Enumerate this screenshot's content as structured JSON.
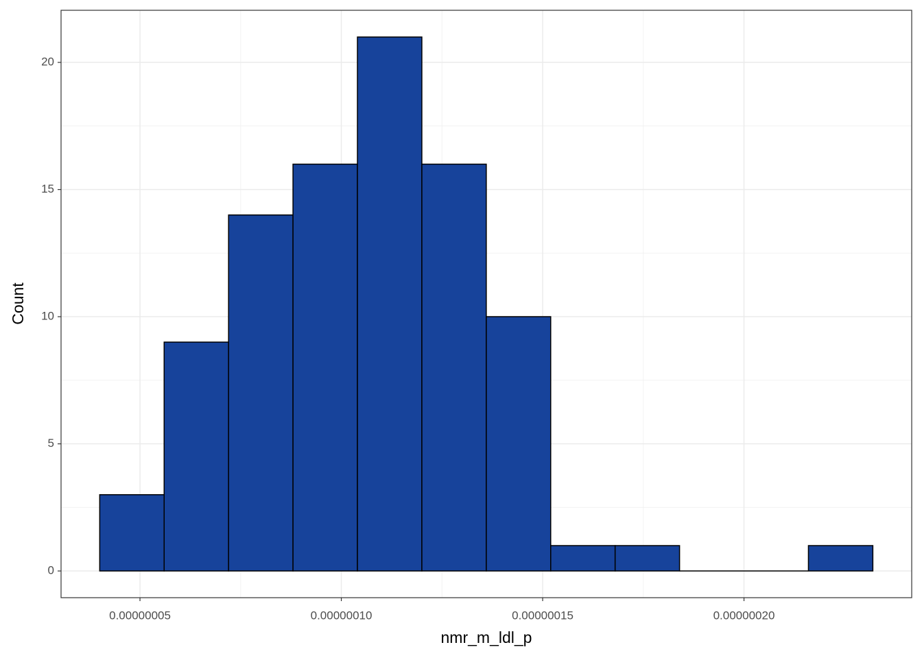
{
  "chart_data": {
    "type": "histogram",
    "x_label": "nmr_m_ldl_p",
    "y_label": "Count",
    "bins": [
      4e-08,
      5.6e-08,
      7.2e-08,
      8.8e-08,
      1.04e-07,
      1.2e-07,
      1.36e-07,
      1.52e-07,
      1.68e-07,
      1.84e-07,
      2e-07,
      2.16e-07,
      2.32e-07
    ],
    "values": [
      3,
      9,
      14,
      16,
      21,
      16,
      10,
      1,
      1,
      0,
      0,
      1
    ],
    "color": "#17439b",
    "edge_color": "#000000",
    "xlim": [
      3.04e-08,
      2.4165e-07
    ],
    "ylim": [
      -1.05,
      22.05
    ],
    "xticks": [
      {
        "value": 5e-08,
        "label": "0.00000005"
      },
      {
        "value": 1e-07,
        "label": "0.00000010"
      },
      {
        "value": 1.5e-07,
        "label": "0.00000015"
      },
      {
        "value": 2e-07,
        "label": "0.00000020"
      }
    ],
    "yticks": [
      0,
      5,
      10,
      15,
      20
    ],
    "grid": true
  }
}
